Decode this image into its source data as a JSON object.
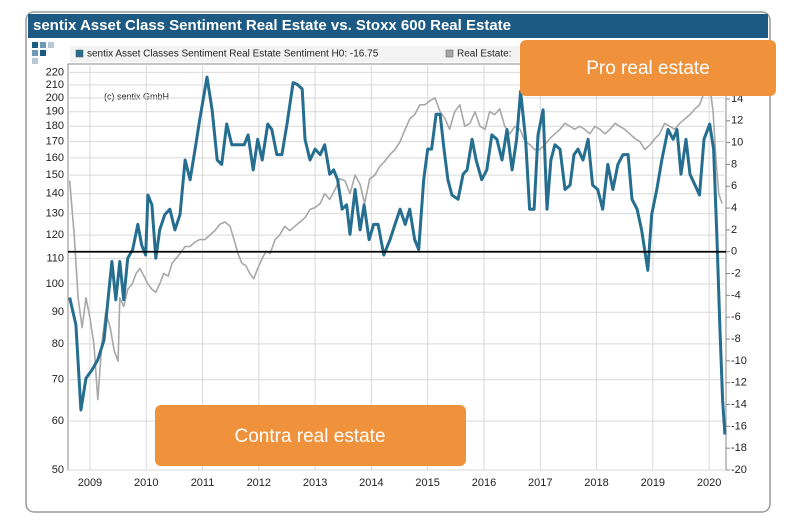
{
  "chart_data": {
    "type": "line",
    "title": "sentix Asset Class Sentiment Real Estate vs. Stoxx 600 Real Estate",
    "annotations": [
      {
        "text": "(c) sentix GmbH"
      },
      {
        "text": "Pro real estate"
      },
      {
        "text": "Contra real estate"
      }
    ],
    "series": [
      {
        "name": "sentix Asset Classes Sentiment Real Estate Sentiment H0: -16.75",
        "color": "#266e90",
        "axis": "y2",
        "x": [
          2008.64,
          2008.75,
          2008.84,
          2008.93,
          2009.04,
          2009.14,
          2009.25,
          2009.32,
          2009.39,
          2009.46,
          2009.53,
          2009.6,
          2009.67,
          2009.76,
          2009.85,
          2009.92,
          2009.99,
          2010.03,
          2010.1,
          2010.17,
          2010.24,
          2010.33,
          2010.42,
          2010.51,
          2010.6,
          2010.69,
          2010.78,
          2010.88,
          2010.95,
          2011.08,
          2011.17,
          2011.26,
          2011.34,
          2011.43,
          2011.52,
          2011.63,
          2011.74,
          2011.81,
          2011.9,
          2011.98,
          2012.06,
          2012.16,
          2012.23,
          2012.32,
          2012.41,
          2012.5,
          2012.61,
          2012.69,
          2012.77,
          2012.82,
          2012.91,
          2013.0,
          2013.09,
          2013.17,
          2013.26,
          2013.33,
          2013.4,
          2013.48,
          2013.56,
          2013.62,
          2013.71,
          2013.8,
          2013.87,
          2013.96,
          2014.04,
          2014.12,
          2014.22,
          2014.33,
          2014.42,
          2014.51,
          2014.6,
          2014.68,
          2014.77,
          2014.84,
          2014.93,
          2015.0,
          2015.07,
          2015.15,
          2015.22,
          2015.29,
          2015.36,
          2015.43,
          2015.54,
          2015.63,
          2015.7,
          2015.79,
          2015.86,
          2015.96,
          2016.05,
          2016.14,
          2016.23,
          2016.32,
          2016.41,
          2016.5,
          2016.58,
          2016.65,
          2016.74,
          2016.81,
          2016.89,
          2016.96,
          2017.05,
          2017.12,
          2017.19,
          2017.26,
          2017.35,
          2017.44,
          2017.53,
          2017.6,
          2017.67,
          2017.76,
          2017.85,
          2017.93,
          2018.02,
          2018.11,
          2018.2,
          2018.29,
          2018.38,
          2018.47,
          2018.56,
          2018.63,
          2018.72,
          2018.8,
          2018.91,
          2018.98,
          2019.07,
          2019.16,
          2019.27,
          2019.36,
          2019.43,
          2019.5,
          2019.59,
          2019.66,
          2019.75,
          2019.83,
          2019.91,
          2020.01,
          2020.08,
          2020.14,
          2020.19,
          2020.24,
          2020.28
        ],
        "values": [
          -4.2,
          -6.7,
          -14.5,
          -11.6,
          -10.8,
          -9.9,
          -8.1,
          -4.4,
          -0.9,
          -4.4,
          -0.9,
          -4.4,
          -0.6,
          0.2,
          2.5,
          0.6,
          -0.3,
          5.2,
          4.3,
          -0.6,
          2.0,
          3.4,
          3.9,
          2.0,
          3.4,
          8.4,
          6.6,
          9.8,
          12.1,
          16.0,
          13.0,
          8.4,
          8.0,
          11.7,
          9.8,
          9.8,
          9.8,
          10.7,
          7.5,
          10.3,
          8.4,
          11.7,
          11.2,
          8.9,
          8.9,
          11.7,
          15.5,
          15.3,
          14.9,
          10.3,
          8.4,
          9.4,
          8.9,
          9.8,
          7.1,
          7.5,
          6.6,
          3.9,
          4.3,
          1.6,
          5.7,
          2.0,
          4.3,
          1.1,
          2.5,
          2.5,
          -0.3,
          1.1,
          2.5,
          3.9,
          2.5,
          3.9,
          1.1,
          0.2,
          6.6,
          9.4,
          9.4,
          12.6,
          12.6,
          9.4,
          6.6,
          5.2,
          4.8,
          7.1,
          7.5,
          10.3,
          8.4,
          6.6,
          7.5,
          10.7,
          10.3,
          8.4,
          11.2,
          7.5,
          10.3,
          14.7,
          10.3,
          3.9,
          3.9,
          10.7,
          13.0,
          3.9,
          8.4,
          9.8,
          9.4,
          5.7,
          6.1,
          8.9,
          9.4,
          8.4,
          10.3,
          6.1,
          5.7,
          3.9,
          8.0,
          5.7,
          8.0,
          8.9,
          8.9,
          4.8,
          3.9,
          2.0,
          -1.7,
          3.4,
          5.7,
          8.4,
          11.2,
          10.3,
          11.2,
          7.1,
          10.3,
          7.1,
          6.1,
          5.2,
          10.3,
          11.7,
          9.4,
          1.1,
          -6.7,
          -13.6,
          -16.75
        ]
      },
      {
        "name": "Real Estate:",
        "color": "#a8a8a8",
        "x": [
          2008.64,
          2008.72,
          2008.79,
          2008.86,
          2008.93,
          2009.0,
          2009.07,
          2009.14,
          2009.21,
          2009.28,
          2009.36,
          2009.43,
          2009.5,
          2009.53,
          2009.6,
          2009.67,
          2009.75,
          2009.82,
          2009.89,
          2009.96,
          2010.03,
          2010.1,
          2010.17,
          2010.24,
          2010.31,
          2010.39,
          2010.46,
          2010.53,
          2010.6,
          2010.69,
          2010.78,
          2010.87,
          2010.95,
          2011.04,
          2011.13,
          2011.22,
          2011.31,
          2011.4,
          2011.49,
          2011.56,
          2011.63,
          2011.7,
          2011.77,
          2011.84,
          2011.91,
          2011.98,
          2012.06,
          2012.13,
          2012.2,
          2012.29,
          2012.37,
          2012.46,
          2012.55,
          2012.64,
          2012.73,
          2012.82,
          2012.91,
          2013.0,
          2013.09,
          2013.17,
          2013.26,
          2013.35,
          2013.44,
          2013.53,
          2013.62,
          2013.71,
          2013.8,
          2013.88,
          2013.97,
          2014.06,
          2014.15,
          2014.24,
          2014.33,
          2014.42,
          2014.51,
          2014.6,
          2014.68,
          2014.77,
          2014.86,
          2014.95,
          2015.04,
          2015.13,
          2015.22,
          2015.31,
          2015.39,
          2015.48,
          2015.57,
          2015.66,
          2015.75,
          2015.84,
          2015.93,
          2016.02,
          2016.1,
          2016.19,
          2016.28,
          2016.37,
          2016.46,
          2016.55,
          2016.64,
          2016.73,
          2016.82,
          2016.9,
          2016.99,
          2017.08,
          2017.17,
          2017.26,
          2017.35,
          2017.44,
          2017.53,
          2017.61,
          2017.7,
          2017.79,
          2017.88,
          2017.97,
          2018.06,
          2018.15,
          2018.24,
          2018.33,
          2018.41,
          2018.5,
          2018.59,
          2018.68,
          2018.77,
          2018.86,
          2018.95,
          2019.04,
          2019.12,
          2019.21,
          2019.3,
          2019.39,
          2019.48,
          2019.57,
          2019.66,
          2019.75,
          2019.83,
          2019.92,
          2020.01,
          2020.07,
          2020.12,
          2020.17,
          2020.23
        ],
        "values": [
          147,
          120,
          95,
          85,
          95,
          88,
          80,
          65,
          80,
          90,
          85,
          78,
          75,
          95,
          92,
          98,
          100,
          104,
          106,
          103,
          100,
          98,
          97,
          100,
          104,
          103,
          108,
          110,
          112,
          115,
          115,
          117,
          118,
          118,
          120,
          122,
          125,
          126,
          124,
          118,
          112,
          108,
          107,
          104,
          102,
          106,
          110,
          113,
          112,
          118,
          120,
          124,
          122,
          124,
          126,
          128,
          132,
          133,
          135,
          140,
          137,
          142,
          148,
          147,
          140,
          150,
          145,
          135,
          148,
          150,
          155,
          158,
          162,
          165,
          170,
          178,
          185,
          188,
          195,
          195,
          198,
          200,
          190,
          185,
          178,
          190,
          195,
          180,
          182,
          190,
          180,
          178,
          190,
          188,
          192,
          180,
          175,
          180,
          178,
          170,
          168,
          165,
          165,
          168,
          172,
          175,
          178,
          182,
          180,
          178,
          180,
          178,
          175,
          180,
          178,
          175,
          178,
          182,
          180,
          178,
          175,
          172,
          170,
          165,
          168,
          172,
          175,
          182,
          180,
          178,
          182,
          185,
          188,
          192,
          195,
          205,
          210,
          190,
          160,
          140,
          135
        ]
      }
    ],
    "xlim": [
      2008.61,
      2020.3
    ],
    "xticks": [
      2009,
      2010,
      2011,
      2012,
      2013,
      2014,
      2015,
      2016,
      2017,
      2018,
      2019,
      2020
    ],
    "ylim": [
      50,
      227
    ],
    "ylog": true,
    "yticks": [
      50,
      60,
      70,
      80,
      90,
      100,
      110,
      120,
      130,
      140,
      150,
      160,
      170,
      180,
      190,
      200,
      210,
      220
    ],
    "y2lim": [
      -20,
      17.2
    ],
    "y2ticks": [
      -20,
      -18,
      -16,
      -14,
      -12,
      -10,
      -8,
      -6,
      -4,
      -2,
      0,
      2,
      4,
      6,
      8,
      10,
      12,
      14
    ],
    "reference_line": {
      "axis": "y2",
      "value": 0,
      "color": "#000000"
    },
    "grid": true
  }
}
